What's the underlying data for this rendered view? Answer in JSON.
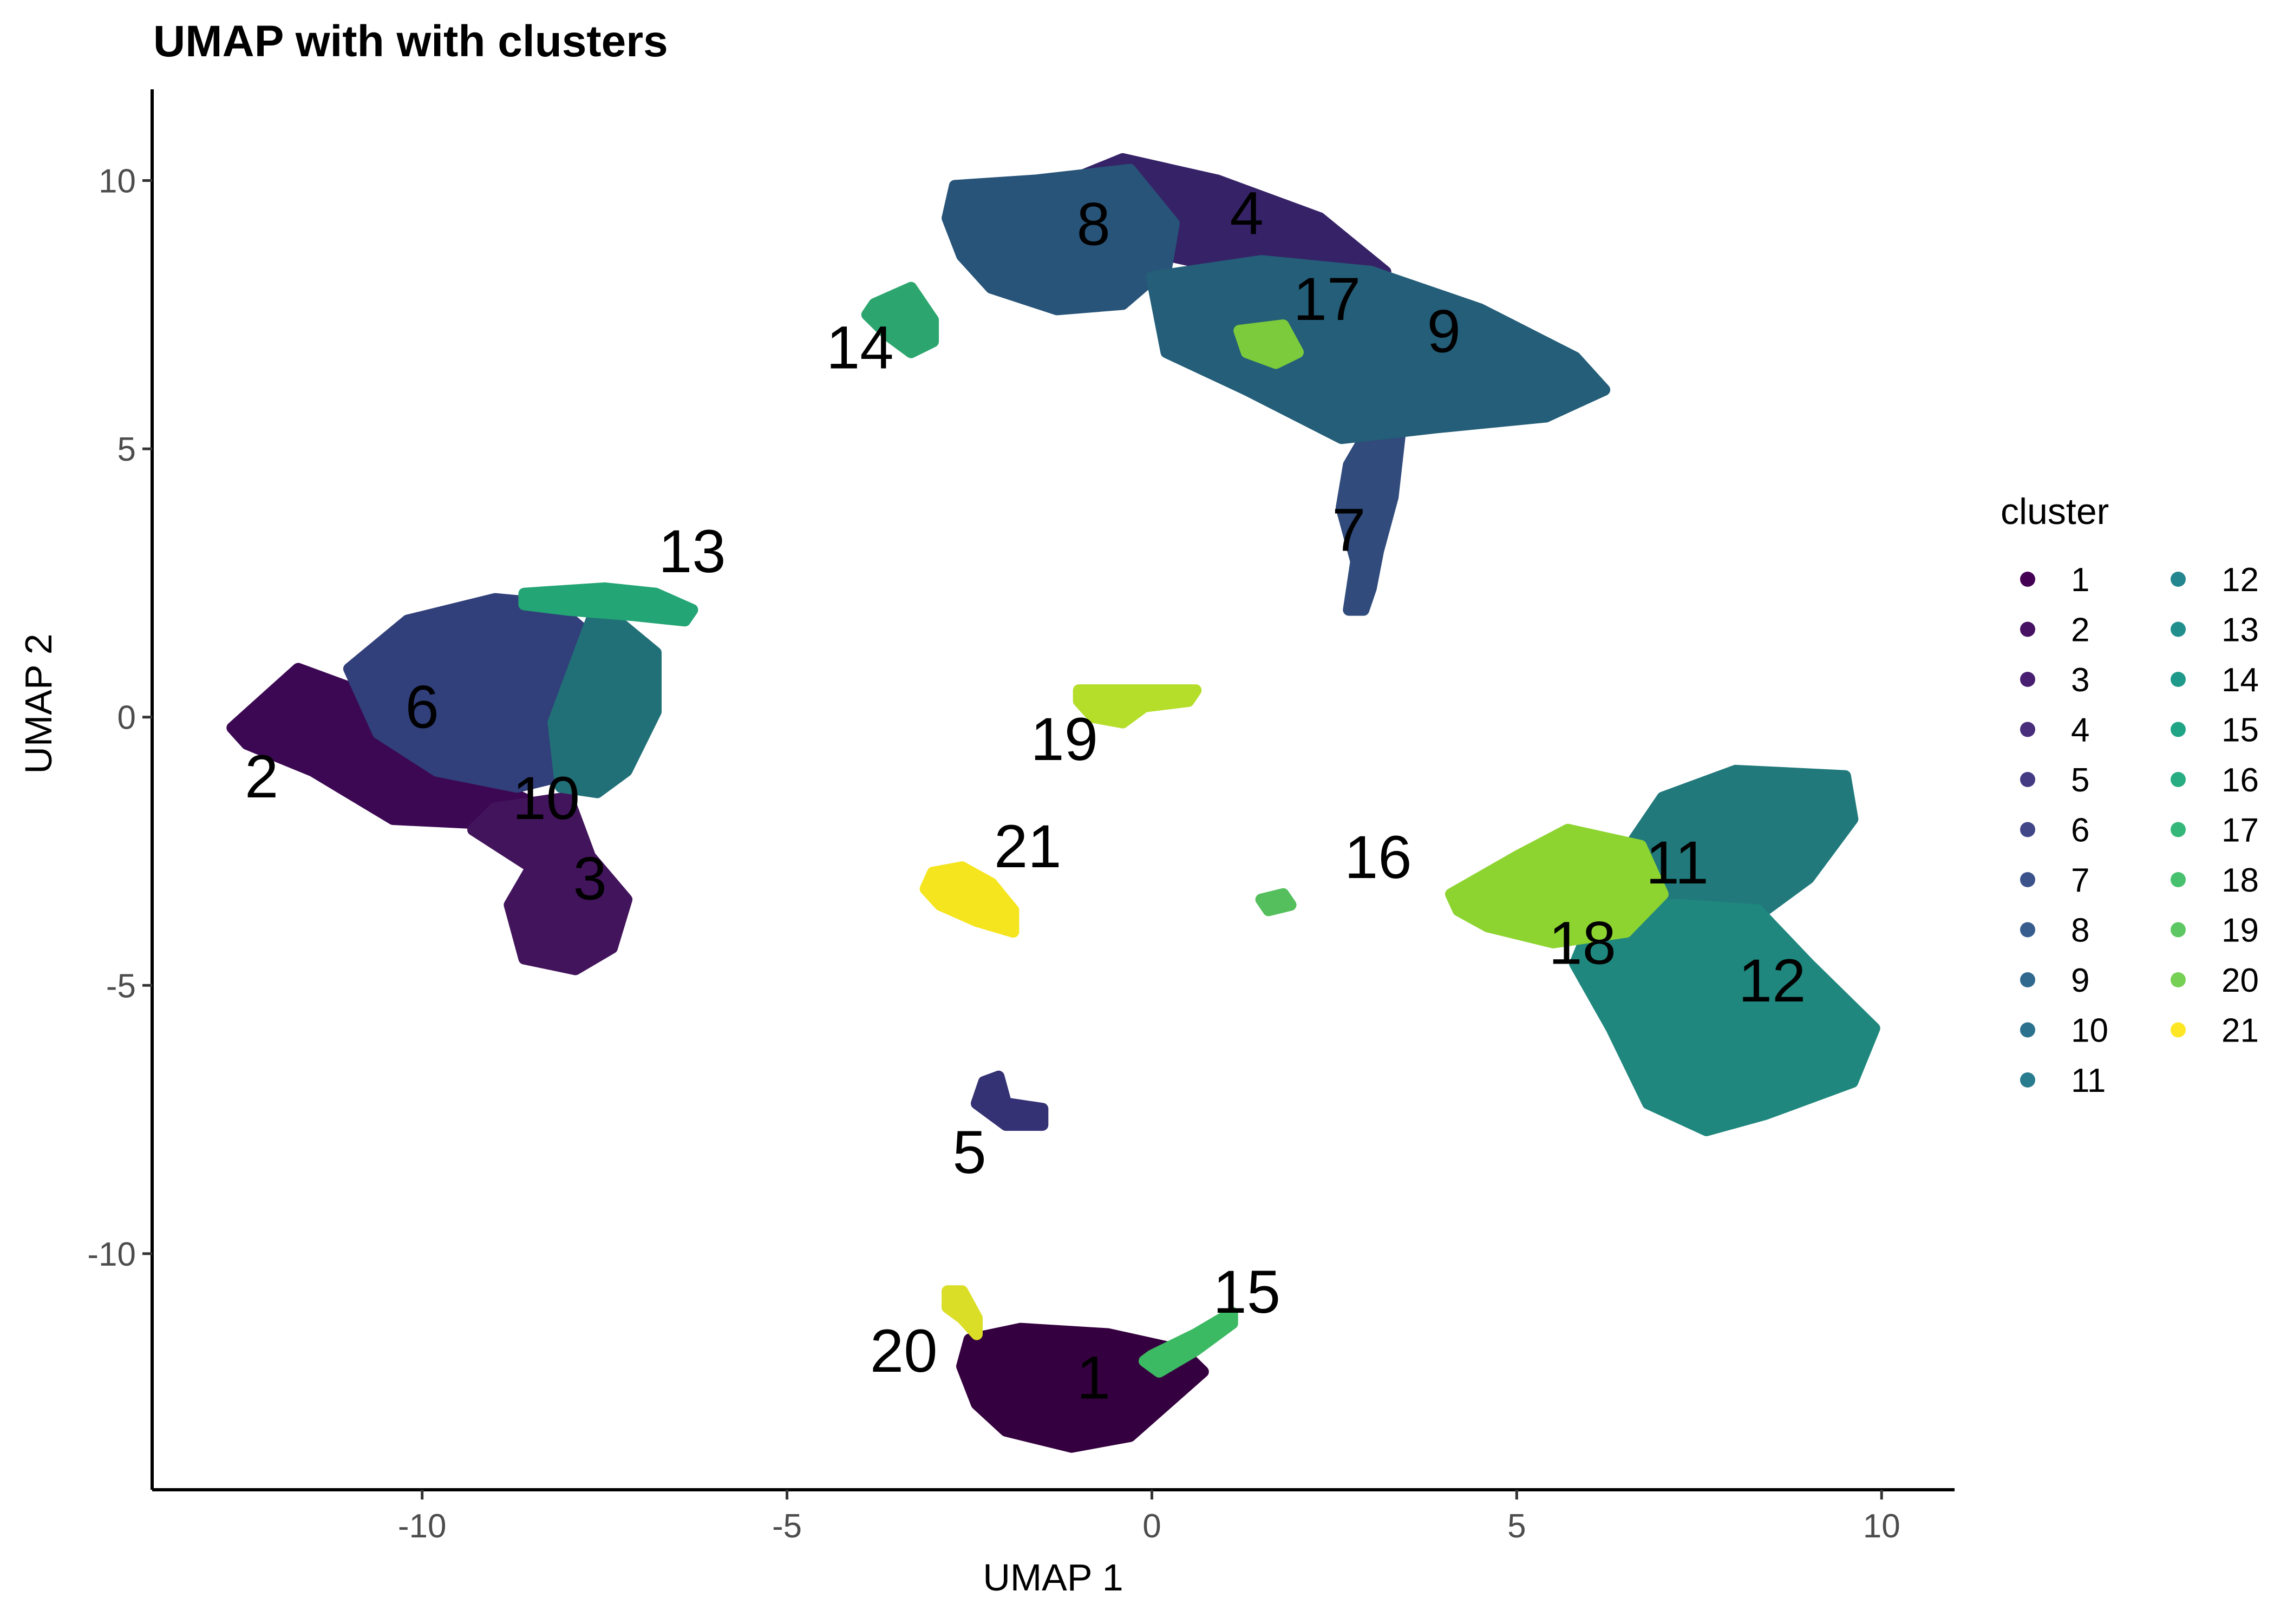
{
  "chart_data": {
    "type": "scatter",
    "title": "UMAP with with clusters",
    "xlabel": "UMAP 1",
    "ylabel": "UMAP 2",
    "xlim": [
      -13.7,
      11.0
    ],
    "ylim": [
      -14.4,
      11.7
    ],
    "xticks": [
      -10,
      -5,
      0,
      5,
      10
    ],
    "yticks": [
      -10,
      -5,
      0,
      5,
      10
    ],
    "xtick_labels": [
      "-10",
      "-5",
      "0",
      "5",
      "10"
    ],
    "ytick_labels": [
      "-10",
      "-5",
      "0",
      "5",
      "10"
    ],
    "grid": false,
    "legend": {
      "title": "cluster",
      "position": "right",
      "columns": 2,
      "entries": [
        "1",
        "2",
        "3",
        "4",
        "5",
        "6",
        "7",
        "8",
        "9",
        "10",
        "11",
        "12",
        "13",
        "14",
        "15",
        "16",
        "17",
        "18",
        "19",
        "20",
        "21"
      ]
    },
    "colors": {
      "1": "#440154",
      "2": "#471164",
      "3": "#481F70",
      "4": "#472D7B",
      "5": "#443A83",
      "6": "#404688",
      "7": "#3B528B",
      "8": "#365D8D",
      "9": "#31688E",
      "10": "#2C728E",
      "11": "#287C8E",
      "12": "#24868E",
      "13": "#21908C",
      "14": "#1F9A8A",
      "15": "#20A486",
      "16": "#27AD81",
      "17": "#35B779",
      "18": "#47C16E",
      "19": "#5DC863",
      "20": "#75D054",
      "21": "#FDE725"
    },
    "cluster_fill": {
      "1": "#35003F",
      "2": "#3C0853",
      "3": "#42145C",
      "4": "#362367",
      "5": "#343174",
      "6": "#313F7A",
      "7": "#304B7C",
      "8": "#285479",
      "9": "#245E78",
      "10": "#227077",
      "11": "#21797B",
      "12": "#1F877D",
      "13": "#23A575",
      "14": "#2CA66E",
      "15": "#3CB963",
      "16": "#54BF5C",
      "17": "#7CCB3C",
      "18": "#8DD431",
      "19": "#B5DE2B",
      "20": "#DADE27",
      "21": "#F5E51E"
    },
    "clusters": [
      {
        "id": "1",
        "label": "1",
        "label_pos": [
          -0.8,
          -12.4
        ],
        "outline": [
          [
            -2.5,
            -11.6
          ],
          [
            -1.8,
            -11.4
          ],
          [
            -0.6,
            -11.5
          ],
          [
            0.4,
            -11.8
          ],
          [
            0.7,
            -12.2
          ],
          [
            0.2,
            -12.8
          ],
          [
            -0.3,
            -13.4
          ],
          [
            -1.1,
            -13.6
          ],
          [
            -2.0,
            -13.3
          ],
          [
            -2.4,
            -12.8
          ],
          [
            -2.6,
            -12.1
          ]
        ]
      },
      {
        "id": "2",
        "label": "2",
        "label_pos": [
          -12.2,
          -1.2
        ],
        "outline": [
          [
            -12.6,
            -0.2
          ],
          [
            -11.7,
            0.9
          ],
          [
            -10.9,
            0.5
          ],
          [
            -10.2,
            -0.7
          ],
          [
            -9.6,
            -1.2
          ],
          [
            -8.8,
            -1.4
          ],
          [
            -8.0,
            -1.9
          ],
          [
            -8.9,
            -2.0
          ],
          [
            -10.4,
            -1.9
          ],
          [
            -11.5,
            -1.0
          ],
          [
            -12.4,
            -0.5
          ]
        ]
      },
      {
        "id": "3",
        "label": "3",
        "label_pos": [
          -7.7,
          -3.1
        ],
        "outline": [
          [
            -9.0,
            -1.7
          ],
          [
            -8.0,
            -1.5
          ],
          [
            -7.7,
            -2.6
          ],
          [
            -7.2,
            -3.4
          ],
          [
            -7.4,
            -4.3
          ],
          [
            -7.9,
            -4.7
          ],
          [
            -8.6,
            -4.5
          ],
          [
            -8.8,
            -3.5
          ],
          [
            -8.5,
            -2.8
          ],
          [
            -9.3,
            -2.1
          ]
        ]
      },
      {
        "id": "4",
        "label": "4",
        "label_pos": [
          1.3,
          9.3
        ],
        "outline": [
          [
            -1.3,
            9.9
          ],
          [
            -0.4,
            10.4
          ],
          [
            0.9,
            10.0
          ],
          [
            2.3,
            9.3
          ],
          [
            3.2,
            8.3
          ],
          [
            2.8,
            7.7
          ],
          [
            1.9,
            7.8
          ],
          [
            0.9,
            8.4
          ],
          [
            -0.1,
            8.7
          ],
          [
            -1.0,
            9.1
          ]
        ]
      },
      {
        "id": "5",
        "label": "5",
        "label_pos": [
          -2.5,
          -8.2
        ],
        "outline": [
          [
            -2.3,
            -6.8
          ],
          [
            -2.1,
            -6.7
          ],
          [
            -2.0,
            -7.2
          ],
          [
            -1.5,
            -7.3
          ],
          [
            -1.5,
            -7.6
          ],
          [
            -2.0,
            -7.6
          ],
          [
            -2.4,
            -7.2
          ]
        ]
      },
      {
        "id": "6",
        "label": "6",
        "label_pos": [
          -10.0,
          0.1
        ],
        "outline": [
          [
            -11.0,
            0.9
          ],
          [
            -10.2,
            1.8
          ],
          [
            -9.0,
            2.2
          ],
          [
            -8.2,
            2.1
          ],
          [
            -7.6,
            1.4
          ],
          [
            -7.4,
            0.0
          ],
          [
            -7.8,
            -1.0
          ],
          [
            -8.7,
            -1.3
          ],
          [
            -9.8,
            -1.0
          ],
          [
            -10.6,
            -0.3
          ]
        ]
      },
      {
        "id": "7",
        "label": "7",
        "label_pos": [
          2.7,
          3.4
        ],
        "outline": [
          [
            3.0,
            5.4
          ],
          [
            3.4,
            5.3
          ],
          [
            3.3,
            4.1
          ],
          [
            3.1,
            3.1
          ],
          [
            3.0,
            2.4
          ],
          [
            2.9,
            2.0
          ],
          [
            2.7,
            2.0
          ],
          [
            2.8,
            2.9
          ],
          [
            2.6,
            3.9
          ],
          [
            2.7,
            4.7
          ]
        ]
      },
      {
        "id": "8",
        "label": "8",
        "label_pos": [
          -0.8,
          9.1
        ],
        "outline": [
          [
            -2.7,
            9.9
          ],
          [
            -1.6,
            10.0
          ],
          [
            -0.3,
            10.2
          ],
          [
            0.3,
            9.2
          ],
          [
            0.2,
            8.4
          ],
          [
            -0.4,
            7.7
          ],
          [
            -1.3,
            7.6
          ],
          [
            -2.2,
            8.0
          ],
          [
            -2.6,
            8.6
          ],
          [
            -2.8,
            9.3
          ]
        ]
      },
      {
        "id": "9",
        "label": "9",
        "label_pos": [
          4.0,
          7.1
        ],
        "outline": [
          [
            0.0,
            8.2
          ],
          [
            1.5,
            8.5
          ],
          [
            3.0,
            8.3
          ],
          [
            4.5,
            7.6
          ],
          [
            5.8,
            6.7
          ],
          [
            6.2,
            6.1
          ],
          [
            5.4,
            5.6
          ],
          [
            3.9,
            5.4
          ],
          [
            2.6,
            5.2
          ],
          [
            1.3,
            6.1
          ],
          [
            0.2,
            6.8
          ]
        ]
      },
      {
        "id": "10",
        "label": "10",
        "label_pos": [
          -8.3,
          -1.6
        ],
        "outline": [
          [
            -7.6,
            2.1
          ],
          [
            -6.8,
            1.2
          ],
          [
            -6.8,
            0.1
          ],
          [
            -7.2,
            -1.0
          ],
          [
            -7.6,
            -1.4
          ],
          [
            -8.1,
            -1.3
          ],
          [
            -8.2,
            -0.1
          ],
          [
            -7.9,
            1.0
          ]
        ]
      },
      {
        "id": "11",
        "label": "11",
        "label_pos": [
          7.2,
          -2.8
        ],
        "outline": [
          [
            7.0,
            -1.5
          ],
          [
            8.0,
            -1.0
          ],
          [
            9.5,
            -1.1
          ],
          [
            9.6,
            -1.9
          ],
          [
            9.0,
            -3.0
          ],
          [
            8.2,
            -3.8
          ],
          [
            7.2,
            -3.8
          ],
          [
            6.6,
            -3.4
          ],
          [
            6.5,
            -2.5
          ]
        ]
      },
      {
        "id": "12",
        "label": "12",
        "label_pos": [
          8.5,
          -5.0
        ],
        "outline": [
          [
            6.1,
            -3.6
          ],
          [
            7.2,
            -3.5
          ],
          [
            8.3,
            -3.6
          ],
          [
            9.0,
            -4.6
          ],
          [
            9.9,
            -5.8
          ],
          [
            9.6,
            -6.8
          ],
          [
            8.4,
            -7.4
          ],
          [
            7.6,
            -7.7
          ],
          [
            6.8,
            -7.2
          ],
          [
            6.3,
            -5.8
          ],
          [
            5.8,
            -4.6
          ]
        ]
      },
      {
        "id": "13",
        "label": "13",
        "label_pos": [
          -6.3,
          3.0
        ],
        "outline": [
          [
            -8.6,
            2.3
          ],
          [
            -7.5,
            2.4
          ],
          [
            -6.8,
            2.3
          ],
          [
            -6.3,
            2.0
          ],
          [
            -6.4,
            1.8
          ],
          [
            -7.1,
            1.9
          ],
          [
            -8.0,
            2.0
          ],
          [
            -8.6,
            2.1
          ]
        ]
      },
      {
        "id": "14",
        "label": "14",
        "label_pos": [
          -4.0,
          6.8
        ],
        "outline": [
          [
            -3.8,
            7.7
          ],
          [
            -3.3,
            8.0
          ],
          [
            -3.0,
            7.4
          ],
          [
            -3.0,
            7.0
          ],
          [
            -3.3,
            6.8
          ],
          [
            -3.6,
            7.1
          ],
          [
            -3.9,
            7.5
          ]
        ]
      },
      {
        "id": "15",
        "label": "15",
        "label_pos": [
          1.3,
          -10.8
        ],
        "outline": [
          [
            0.0,
            -11.9
          ],
          [
            0.6,
            -11.5
          ],
          [
            1.1,
            -11.1
          ],
          [
            1.1,
            -11.3
          ],
          [
            0.6,
            -11.8
          ],
          [
            0.1,
            -12.2
          ],
          [
            -0.1,
            -12.0
          ]
        ]
      },
      {
        "id": "16",
        "label": "16",
        "label_pos": [
          3.1,
          -2.7
        ],
        "outline": [
          [
            1.5,
            -3.4
          ],
          [
            1.8,
            -3.3
          ],
          [
            1.9,
            -3.5
          ],
          [
            1.6,
            -3.6
          ]
        ]
      },
      {
        "id": "17",
        "label": "17",
        "label_pos": [
          2.4,
          7.7
        ],
        "outline": [
          [
            1.2,
            7.2
          ],
          [
            1.8,
            7.3
          ],
          [
            2.0,
            6.8
          ],
          [
            1.7,
            6.6
          ],
          [
            1.3,
            6.8
          ]
        ]
      },
      {
        "id": "18",
        "label": "18",
        "label_pos": [
          5.9,
          -4.3
        ],
        "outline": [
          [
            4.1,
            -3.3
          ],
          [
            5.0,
            -2.6
          ],
          [
            5.7,
            -2.1
          ],
          [
            6.7,
            -2.4
          ],
          [
            7.0,
            -3.3
          ],
          [
            6.5,
            -4.0
          ],
          [
            5.5,
            -4.2
          ],
          [
            4.6,
            -3.9
          ],
          [
            4.2,
            -3.6
          ]
        ]
      },
      {
        "id": "19",
        "label": "19",
        "label_pos": [
          -1.2,
          -0.5
        ],
        "outline": [
          [
            -1.0,
            0.5
          ],
          [
            0.6,
            0.5
          ],
          [
            0.5,
            0.3
          ],
          [
            -0.1,
            0.2
          ],
          [
            -0.4,
            -0.1
          ],
          [
            -0.8,
            0.0
          ],
          [
            -1.0,
            0.3
          ]
        ]
      },
      {
        "id": "20",
        "label": "20",
        "label_pos": [
          -3.4,
          -11.9
        ],
        "outline": [
          [
            -2.8,
            -10.7
          ],
          [
            -2.6,
            -10.7
          ],
          [
            -2.4,
            -11.2
          ],
          [
            -2.4,
            -11.5
          ],
          [
            -2.6,
            -11.2
          ],
          [
            -2.8,
            -11.0
          ]
        ]
      },
      {
        "id": "21",
        "label": "21",
        "label_pos": [
          -1.7,
          -2.5
        ],
        "outline": [
          [
            -3.0,
            -2.9
          ],
          [
            -2.6,
            -2.8
          ],
          [
            -2.2,
            -3.1
          ],
          [
            -1.9,
            -3.6
          ],
          [
            -1.9,
            -4.0
          ],
          [
            -2.4,
            -3.8
          ],
          [
            -2.9,
            -3.5
          ],
          [
            -3.1,
            -3.2
          ]
        ]
      }
    ]
  }
}
